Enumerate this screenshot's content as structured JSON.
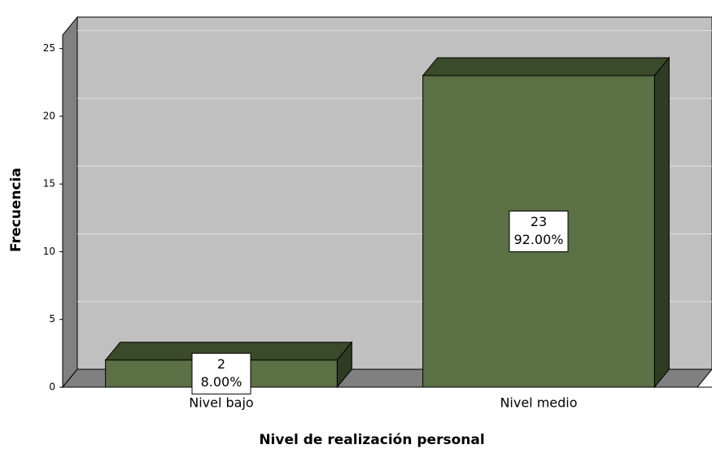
{
  "chart_data": {
    "type": "bar3d",
    "x_label": "Nivel de realización personal",
    "y_label": "Frecuencia",
    "categories": [
      "Nivel bajo",
      "Nivel medio"
    ],
    "values": [
      2,
      23
    ],
    "percentages": [
      8,
      92
    ],
    "percentage_labels": [
      "8.00%",
      "92.00%"
    ],
    "color": "#5b7045",
    "ylim": [
      0,
      26
    ],
    "yticks": [
      0,
      5,
      10,
      15,
      20,
      25
    ],
    "grid": true
  }
}
